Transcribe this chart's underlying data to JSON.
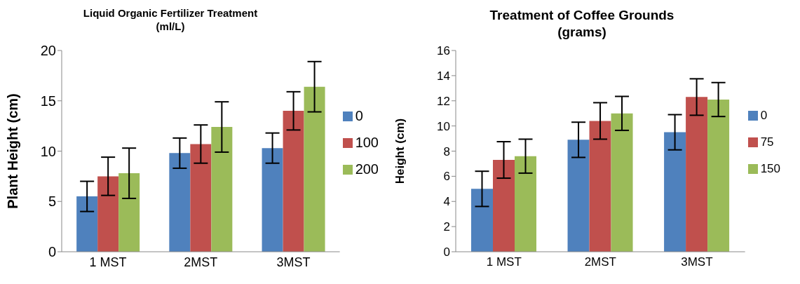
{
  "chart_data": [
    {
      "type": "bar",
      "title": "Liquid Organic Fertilizer Treatment (ml/L)",
      "ylabel": "Plant Height (cm)",
      "categories": [
        "1 MST",
        "2MST",
        "3MST"
      ],
      "series": [
        {
          "name": "0",
          "color": "#4f81bd",
          "values": [
            5.5,
            9.8,
            10.3
          ],
          "errors": [
            1.5,
            1.5,
            1.5
          ]
        },
        {
          "name": "100",
          "color": "#c0504d",
          "values": [
            7.5,
            10.7,
            14.0
          ],
          "errors": [
            1.9,
            1.9,
            1.9
          ]
        },
        {
          "name": "200",
          "color": "#9bbb59",
          "values": [
            7.8,
            12.4,
            16.4
          ],
          "errors": [
            2.5,
            2.5,
            2.5
          ]
        }
      ],
      "ylim": [
        0,
        20
      ],
      "yticks": [
        0,
        5,
        10,
        15,
        20
      ],
      "grid": false,
      "legend": "right"
    },
    {
      "type": "bar",
      "title": "Treatment of Coffee Grounds (grams)",
      "ylabel": "Height (cm)",
      "categories": [
        "1 MST",
        "2MST",
        "3MST"
      ],
      "series": [
        {
          "name": "0",
          "color": "#4f81bd",
          "values": [
            5.0,
            8.9,
            9.5
          ],
          "errors": [
            1.4,
            1.4,
            1.4
          ]
        },
        {
          "name": "75",
          "color": "#c0504d",
          "values": [
            7.3,
            10.4,
            12.3
          ],
          "errors": [
            1.45,
            1.45,
            1.45
          ]
        },
        {
          "name": "150",
          "color": "#9bbb59",
          "values": [
            7.6,
            11.0,
            12.1
          ],
          "errors": [
            1.35,
            1.35,
            1.35
          ]
        }
      ],
      "ylim": [
        0,
        16
      ],
      "yticks": [
        0,
        2,
        4,
        6,
        8,
        10,
        12,
        14,
        16
      ],
      "grid": false,
      "legend": "right"
    }
  ]
}
